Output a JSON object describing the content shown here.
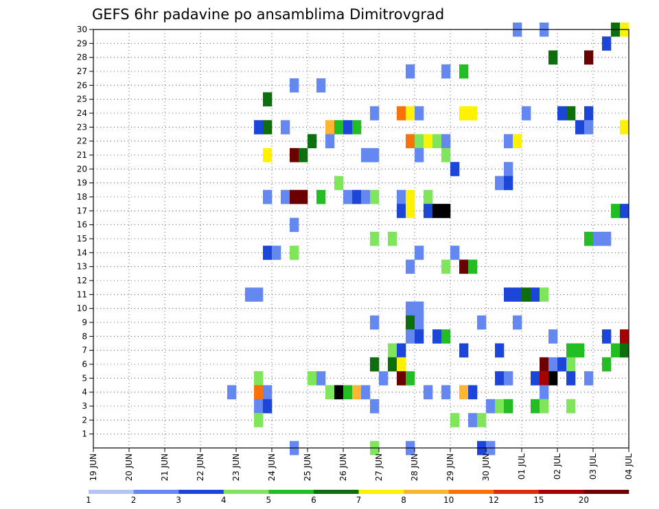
{
  "chart_data": {
    "type": "heatmap",
    "title": "GEFS 6hr padavine po ansamblima Dimitrovgrad",
    "x_tick_labels": [
      "19 JUN",
      "20 JUN",
      "21 JUN",
      "22 JUN",
      "23 JUN",
      "24 JUN",
      "25 JUN",
      "26 JUN",
      "27 JUN",
      "28 JUN",
      "29 JUN",
      "30 JUN",
      "01 JUL",
      "02 JUL",
      "03 JUL",
      "04 JUL"
    ],
    "y_tick_labels": [
      "1",
      "2",
      "3",
      "4",
      "5",
      "6",
      "7",
      "8",
      "9",
      "10",
      "11",
      "12",
      "13",
      "14",
      "15",
      "16",
      "17",
      "18",
      "19",
      "20",
      "21",
      "22",
      "23",
      "24",
      "25",
      "26",
      "27",
      "28",
      "29",
      "30"
    ],
    "x_unit": "6-hour steps from 19 JUN 00Z",
    "steps_per_day": 4,
    "x_range": [
      0,
      60
    ],
    "y_range": [
      0,
      30
    ],
    "grid": "dotted",
    "legend_placement": "bottom",
    "legend": {
      "labels": [
        "1",
        "2",
        "3",
        "4",
        "5",
        "6",
        "7",
        "8",
        "10",
        "12",
        "15",
        "20"
      ],
      "colors": [
        "#b4c5f5",
        "#6488f0",
        "#1c46d8",
        "#7fe55a",
        "#23bd23",
        "#0d6e0d",
        "#fff200",
        "#ffb432",
        "#f8720a",
        "#dd2c06",
        "#a80000",
        "#6a0000"
      ]
    },
    "cells": [
      [
        48,
        30,
        1
      ],
      [
        51,
        30,
        1
      ],
      [
        59,
        30,
        5
      ],
      [
        60,
        30,
        6
      ],
      [
        58,
        29,
        2
      ],
      [
        52,
        28,
        5
      ],
      [
        56,
        28,
        11
      ],
      [
        36,
        27,
        1
      ],
      [
        40,
        27,
        1
      ],
      [
        42,
        27,
        4
      ],
      [
        23,
        26,
        1
      ],
      [
        26,
        26,
        1
      ],
      [
        20,
        25,
        5
      ],
      [
        32,
        24,
        1
      ],
      [
        35,
        24,
        8
      ],
      [
        36,
        24,
        6
      ],
      [
        37,
        24,
        1
      ],
      [
        42,
        24,
        6
      ],
      [
        43,
        24,
        6
      ],
      [
        49,
        24,
        1
      ],
      [
        53,
        24,
        2
      ],
      [
        54,
        24,
        5
      ],
      [
        56,
        24,
        2
      ],
      [
        19,
        23,
        2
      ],
      [
        20,
        23,
        5
      ],
      [
        22,
        23,
        1
      ],
      [
        27,
        23,
        7
      ],
      [
        28,
        23,
        4
      ],
      [
        29,
        23,
        2
      ],
      [
        30,
        23,
        4
      ],
      [
        55,
        23,
        2
      ],
      [
        56,
        23,
        1
      ],
      [
        60,
        23,
        6
      ],
      [
        25,
        22,
        5
      ],
      [
        27,
        22,
        1
      ],
      [
        36,
        22,
        8
      ],
      [
        37,
        22,
        3
      ],
      [
        38,
        22,
        6
      ],
      [
        39,
        22,
        3
      ],
      [
        40,
        22,
        1
      ],
      [
        47,
        22,
        1
      ],
      [
        48,
        22,
        6
      ],
      [
        20,
        21,
        6
      ],
      [
        23,
        21,
        11
      ],
      [
        24,
        21,
        5
      ],
      [
        31,
        21,
        1
      ],
      [
        32,
        21,
        1
      ],
      [
        37,
        21,
        1
      ],
      [
        40,
        21,
        3
      ],
      [
        41,
        20,
        2
      ],
      [
        47,
        20,
        1
      ],
      [
        28,
        19,
        3
      ],
      [
        46,
        19,
        1
      ],
      [
        47,
        19,
        2
      ],
      [
        20,
        18,
        1
      ],
      [
        22,
        18,
        1
      ],
      [
        23,
        18,
        11
      ],
      [
        24,
        18,
        11
      ],
      [
        26,
        18,
        4
      ],
      [
        29,
        18,
        1
      ],
      [
        30,
        18,
        2
      ],
      [
        31,
        18,
        1
      ],
      [
        32,
        18,
        3
      ],
      [
        35,
        18,
        1
      ],
      [
        36,
        18,
        6
      ],
      [
        38,
        18,
        3
      ],
      [
        35,
        17,
        2
      ],
      [
        36,
        17,
        6
      ],
      [
        38,
        17,
        2
      ],
      [
        39,
        17,
        12
      ],
      [
        40,
        17,
        12
      ],
      [
        59,
        17,
        4
      ],
      [
        60,
        17,
        2
      ],
      [
        23,
        16,
        1
      ],
      [
        32,
        15,
        3
      ],
      [
        34,
        15,
        3
      ],
      [
        56,
        15,
        4
      ],
      [
        57,
        15,
        1
      ],
      [
        58,
        15,
        1
      ],
      [
        20,
        14,
        2
      ],
      [
        21,
        14,
        1
      ],
      [
        23,
        14,
        3
      ],
      [
        37,
        14,
        1
      ],
      [
        41,
        14,
        1
      ],
      [
        36,
        13,
        1
      ],
      [
        40,
        13,
        3
      ],
      [
        42,
        13,
        11
      ],
      [
        43,
        13,
        4
      ],
      [
        18,
        11,
        1
      ],
      [
        19,
        11,
        1
      ],
      [
        47,
        11,
        2
      ],
      [
        48,
        11,
        2
      ],
      [
        49,
        11,
        5
      ],
      [
        50,
        11,
        2
      ],
      [
        51,
        11,
        3
      ],
      [
        36,
        10,
        1
      ],
      [
        37,
        10,
        1
      ],
      [
        32,
        9,
        1
      ],
      [
        36,
        9,
        5
      ],
      [
        37,
        9,
        1
      ],
      [
        44,
        9,
        1
      ],
      [
        48,
        9,
        1
      ],
      [
        36,
        8,
        1
      ],
      [
        37,
        8,
        2
      ],
      [
        39,
        8,
        2
      ],
      [
        40,
        8,
        4
      ],
      [
        52,
        8,
        1
      ],
      [
        58,
        8,
        2
      ],
      [
        60,
        8,
        10
      ],
      [
        34,
        7,
        3
      ],
      [
        35,
        7,
        2
      ],
      [
        42,
        7,
        2
      ],
      [
        46,
        7,
        2
      ],
      [
        54,
        7,
        4
      ],
      [
        55,
        7,
        4
      ],
      [
        59,
        7,
        4
      ],
      [
        60,
        7,
        5
      ],
      [
        32,
        6,
        5
      ],
      [
        34,
        6,
        5
      ],
      [
        35,
        6,
        6
      ],
      [
        51,
        6,
        11
      ],
      [
        52,
        6,
        1
      ],
      [
        53,
        6,
        2
      ],
      [
        54,
        6,
        3
      ],
      [
        58,
        6,
        4
      ],
      [
        19,
        5,
        3
      ],
      [
        25,
        5,
        3
      ],
      [
        26,
        5,
        1
      ],
      [
        33,
        5,
        1
      ],
      [
        35,
        5,
        11
      ],
      [
        36,
        5,
        4
      ],
      [
        46,
        5,
        2
      ],
      [
        47,
        5,
        1
      ],
      [
        50,
        5,
        2
      ],
      [
        51,
        5,
        10
      ],
      [
        52,
        5,
        12
      ],
      [
        54,
        5,
        2
      ],
      [
        56,
        5,
        1
      ],
      [
        16,
        4,
        1
      ],
      [
        19,
        4,
        8
      ],
      [
        20,
        4,
        1
      ],
      [
        27,
        4,
        3
      ],
      [
        28,
        4,
        12
      ],
      [
        29,
        4,
        4
      ],
      [
        30,
        4,
        7
      ],
      [
        31,
        4,
        1
      ],
      [
        38,
        4,
        1
      ],
      [
        40,
        4,
        1
      ],
      [
        42,
        4,
        7
      ],
      [
        43,
        4,
        2
      ],
      [
        51,
        4,
        1
      ],
      [
        19,
        3,
        1
      ],
      [
        20,
        3,
        2
      ],
      [
        32,
        3,
        1
      ],
      [
        45,
        3,
        1
      ],
      [
        46,
        3,
        3
      ],
      [
        47,
        3,
        4
      ],
      [
        50,
        3,
        4
      ],
      [
        51,
        3,
        3
      ],
      [
        54,
        3,
        3
      ],
      [
        19,
        2,
        3
      ],
      [
        41,
        2,
        3
      ],
      [
        43,
        2,
        1
      ],
      [
        44,
        2,
        3
      ],
      [
        23,
        0,
        1
      ],
      [
        32,
        0,
        3
      ],
      [
        36,
        0,
        1
      ],
      [
        44,
        0,
        2
      ],
      [
        45,
        0,
        1
      ]
    ]
  }
}
